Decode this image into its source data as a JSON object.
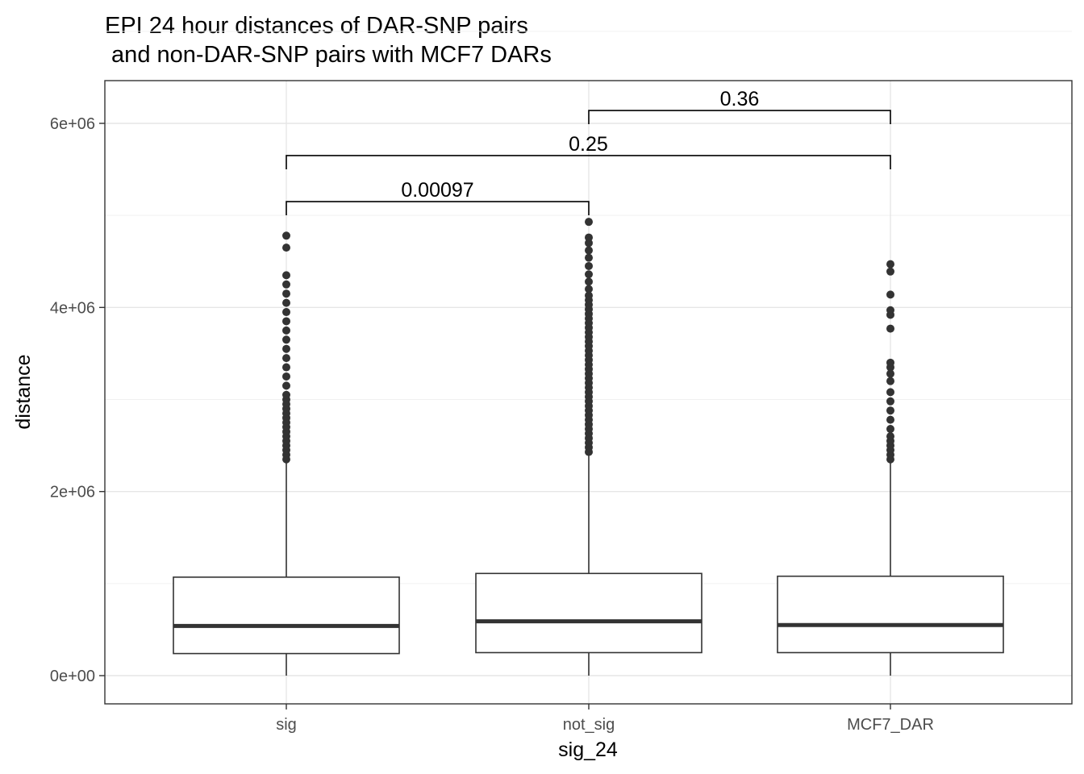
{
  "chart_data": {
    "type": "box",
    "title_line1": "EPI 24 hour distances of DAR-SNP pairs",
    "title_line2": " and non-DAR-SNP pairs with MCF7 DARs",
    "xlabel": "sig_24",
    "ylabel": "distance",
    "ylim": [
      -300000,
      6500000
    ],
    "y_ticks": [
      0,
      2000000,
      4000000,
      6000000
    ],
    "y_tick_labels": [
      "0e+00",
      "2e+06",
      "4e+06",
      "6e+06"
    ],
    "grid": true,
    "categories": [
      "sig",
      "not_sig",
      "MCF7_DAR"
    ],
    "boxes": [
      {
        "name": "sig",
        "whisker_low": 0,
        "q1": 240000,
        "median": 540000,
        "q3": 1070000,
        "whisker_high": 2330000,
        "outliers": [
          2350000,
          2400000,
          2450000,
          2500000,
          2550000,
          2600000,
          2650000,
          2700000,
          2750000,
          2800000,
          2850000,
          2900000,
          2950000,
          3000000,
          3050000,
          3150000,
          3250000,
          3350000,
          3450000,
          3550000,
          3650000,
          3750000,
          3850000,
          3950000,
          4050000,
          4150000,
          4250000,
          4350000,
          4650000,
          4780000
        ]
      },
      {
        "name": "not_sig",
        "whisker_low": 0,
        "q1": 250000,
        "median": 590000,
        "q3": 1110000,
        "whisker_high": 2420000,
        "outliers": [
          2430000,
          2480000,
          2530000,
          2580000,
          2630000,
          2680000,
          2730000,
          2780000,
          2830000,
          2880000,
          2930000,
          2980000,
          3030000,
          3080000,
          3130000,
          3180000,
          3230000,
          3280000,
          3330000,
          3380000,
          3430000,
          3480000,
          3530000,
          3580000,
          3630000,
          3680000,
          3730000,
          3780000,
          3830000,
          3880000,
          3930000,
          3980000,
          4030000,
          4080000,
          4130000,
          4200000,
          4280000,
          4360000,
          4450000,
          4540000,
          4620000,
          4700000,
          4760000,
          4930000
        ]
      },
      {
        "name": "MCF7_DAR",
        "whisker_low": 0,
        "q1": 250000,
        "median": 550000,
        "q3": 1080000,
        "whisker_high": 2330000,
        "outliers": [
          2350000,
          2400000,
          2450000,
          2500000,
          2550000,
          2600000,
          2680000,
          2780000,
          2880000,
          2980000,
          3080000,
          3200000,
          3280000,
          3350000,
          3400000,
          3770000,
          3920000,
          3970000,
          4140000,
          4390000,
          4470000
        ]
      }
    ],
    "comparisons": [
      {
        "from": "sig",
        "to": "not_sig",
        "p_label": "0.00097",
        "y": 5150000
      },
      {
        "from": "sig",
        "to": "MCF7_DAR",
        "p_label": "0.25",
        "y": 5650000
      },
      {
        "from": "not_sig",
        "to": "MCF7_DAR",
        "p_label": "0.36",
        "y": 6140000
      }
    ]
  }
}
